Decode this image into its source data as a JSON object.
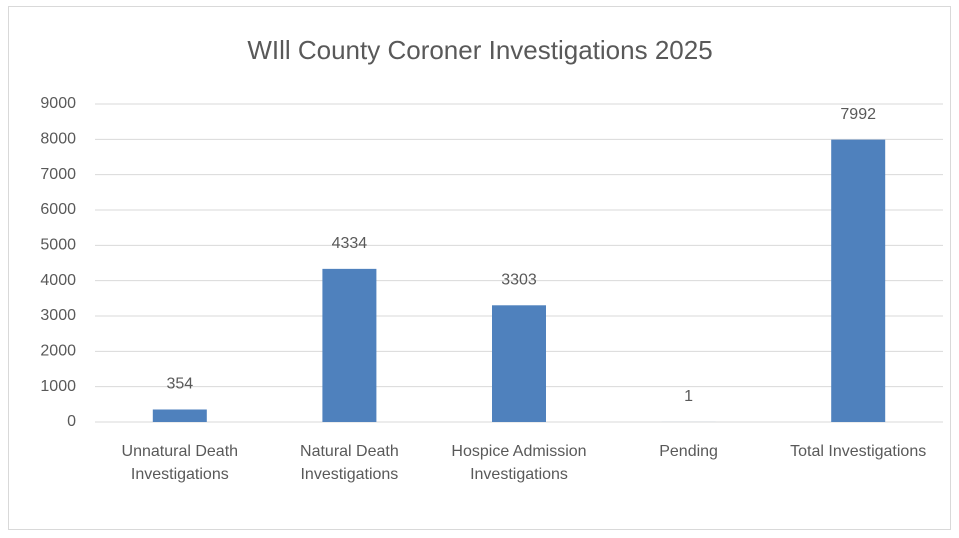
{
  "chart_data": {
    "type": "bar",
    "title": "WIll County Coroner Investigations 2025",
    "categories": [
      "Unnatural Death Investigations",
      "Natural Death Investigations",
      "Hospice Admission Investigations",
      "Pending",
      "Total Investigations"
    ],
    "values": [
      354,
      4334,
      3303,
      1,
      7992
    ],
    "color": "#4f81bd",
    "ylim": [
      0,
      9000
    ],
    "yticks": [
      0,
      1000,
      2000,
      3000,
      4000,
      5000,
      6000,
      7000,
      8000,
      9000
    ],
    "grid": true
  }
}
